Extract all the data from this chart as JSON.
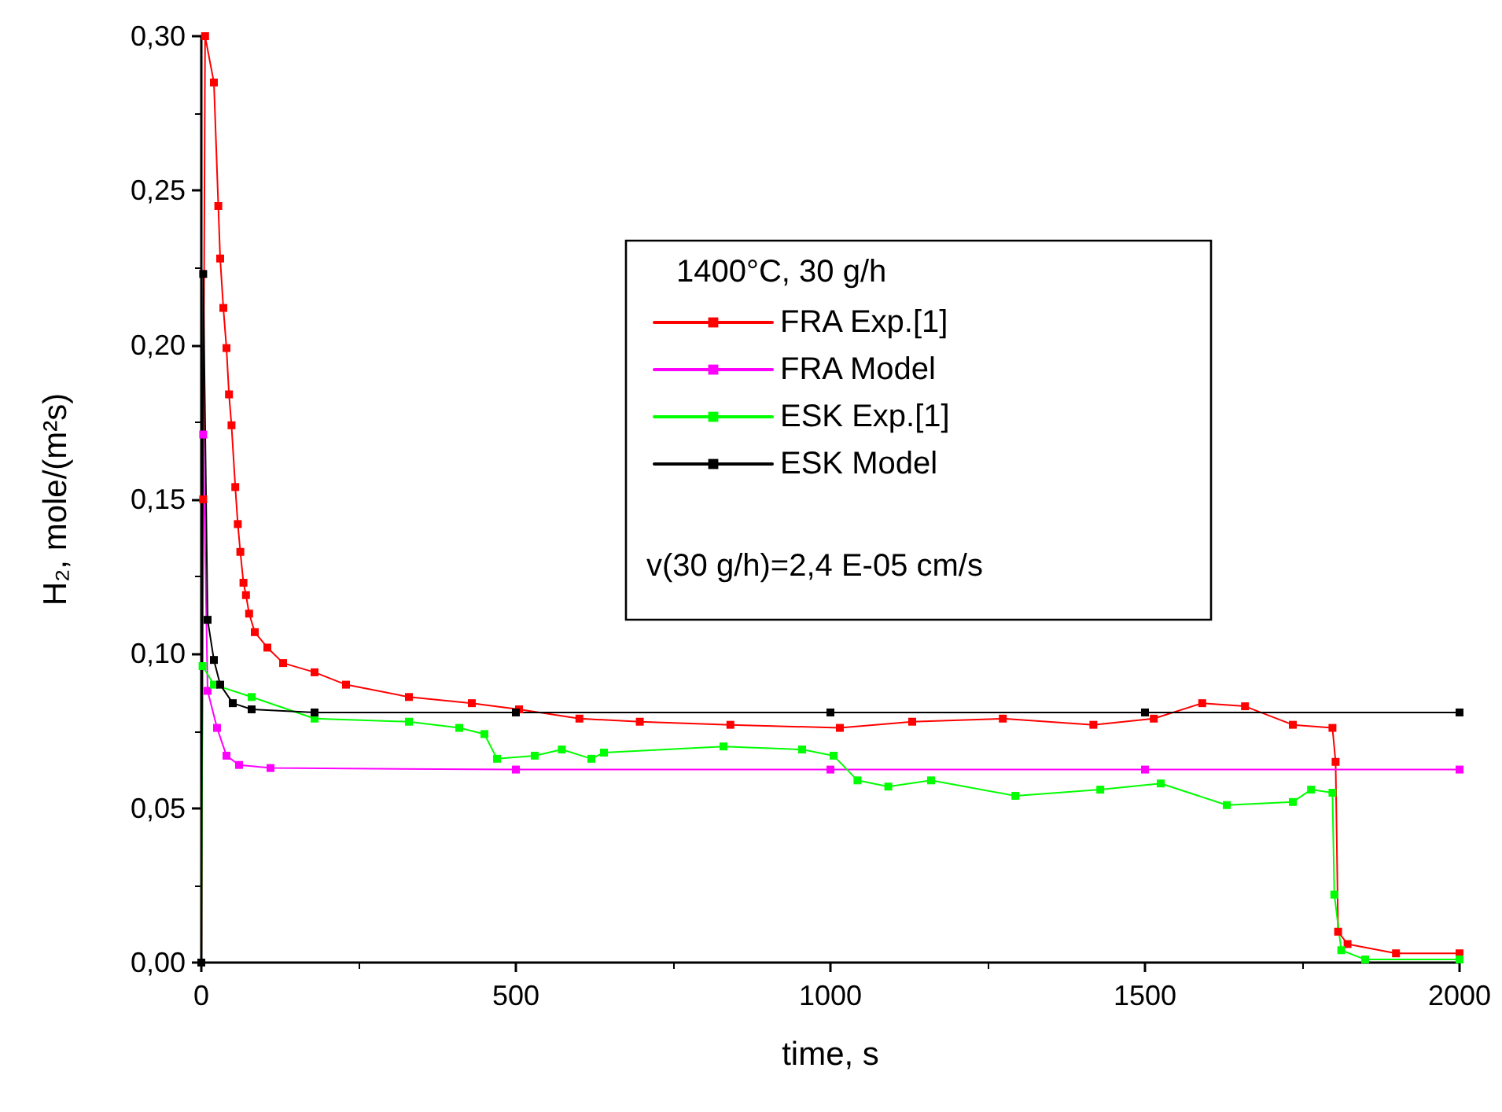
{
  "chart_data": {
    "type": "line",
    "xlabel": "time, s",
    "ylabel": "H₂, mole/(m²s)",
    "legend_title": "1400°C, 30 g/h",
    "annotations": [
      "v(30 g/h)=2,4 E-05 cm/s"
    ],
    "xlim": [
      0,
      2000
    ],
    "xticks": [
      0,
      500,
      1000,
      1500,
      2000
    ],
    "ylim": [
      0,
      0.3
    ],
    "yticks": [
      {
        "value": 0,
        "label": "0,00"
      },
      {
        "value": 0.05,
        "label": "0,05"
      },
      {
        "value": 0.1,
        "label": "0,10"
      },
      {
        "value": 0.15,
        "label": "0,15"
      },
      {
        "value": 0.2,
        "label": "0,20"
      },
      {
        "value": 0.25,
        "label": "0,25"
      },
      {
        "value": 0.3,
        "label": "0,30"
      }
    ],
    "grid": false,
    "legend": "top right",
    "marker": "square",
    "line_style": "solid",
    "series": [
      {
        "name": "FRA Exp.[1]",
        "color": "#ff0000",
        "x": [
          0,
          3,
          6,
          20,
          27,
          30,
          35,
          40,
          44,
          48,
          54,
          58,
          62,
          67,
          71,
          76,
          85,
          105,
          130,
          180,
          230,
          330,
          430,
          505,
          601,
          697,
          841,
          1015,
          1130,
          1274,
          1418,
          1514,
          1591,
          1659,
          1735,
          1798,
          1803,
          1807,
          1822,
          1899,
          2000
        ],
        "values": [
          0,
          0.15,
          0.3,
          0.285,
          0.245,
          0.228,
          0.212,
          0.199,
          0.184,
          0.174,
          0.154,
          0.142,
          0.133,
          0.123,
          0.119,
          0.113,
          0.107,
          0.102,
          0.097,
          0.094,
          0.09,
          0.086,
          0.084,
          0.082,
          0.079,
          0.078,
          0.077,
          0.076,
          0.078,
          0.079,
          0.077,
          0.079,
          0.084,
          0.083,
          0.077,
          0.076,
          0.065,
          0.01,
          0.006,
          0.003,
          0.003
        ]
      },
      {
        "name": "FRA Model",
        "color": "#ff00ff",
        "x": [
          0,
          3,
          10,
          25,
          40,
          60,
          110,
          500,
          1000,
          1500,
          2000
        ],
        "values": [
          0,
          0.171,
          0.088,
          0.076,
          0.067,
          0.064,
          0.063,
          0.0625,
          0.0625,
          0.0625,
          0.0625
        ]
      },
      {
        "name": "ESK Exp.[1]",
        "color": "#00ff00",
        "x": [
          0,
          2,
          20,
          80,
          180,
          330,
          410,
          450,
          470,
          530,
          573,
          620,
          640,
          830,
          955,
          1005,
          1043,
          1092,
          1160,
          1294,
          1429,
          1525,
          1630,
          1735,
          1764,
          1798,
          1801,
          1812,
          1850,
          2000
        ],
        "values": [
          0,
          0.096,
          0.09,
          0.086,
          0.079,
          0.078,
          0.076,
          0.074,
          0.066,
          0.067,
          0.069,
          0.066,
          0.068,
          0.07,
          0.069,
          0.067,
          0.059,
          0.057,
          0.059,
          0.054,
          0.056,
          0.058,
          0.051,
          0.052,
          0.056,
          0.055,
          0.022,
          0.004,
          0.001,
          0.001
        ]
      },
      {
        "name": "ESK Model",
        "color": "#000000",
        "x": [
          0,
          3,
          10,
          20,
          30,
          50,
          80,
          180,
          500,
          1000,
          1500,
          2000
        ],
        "values": [
          0,
          0.223,
          0.111,
          0.098,
          0.09,
          0.084,
          0.082,
          0.081,
          0.081,
          0.081,
          0.081,
          0.081
        ]
      }
    ]
  }
}
